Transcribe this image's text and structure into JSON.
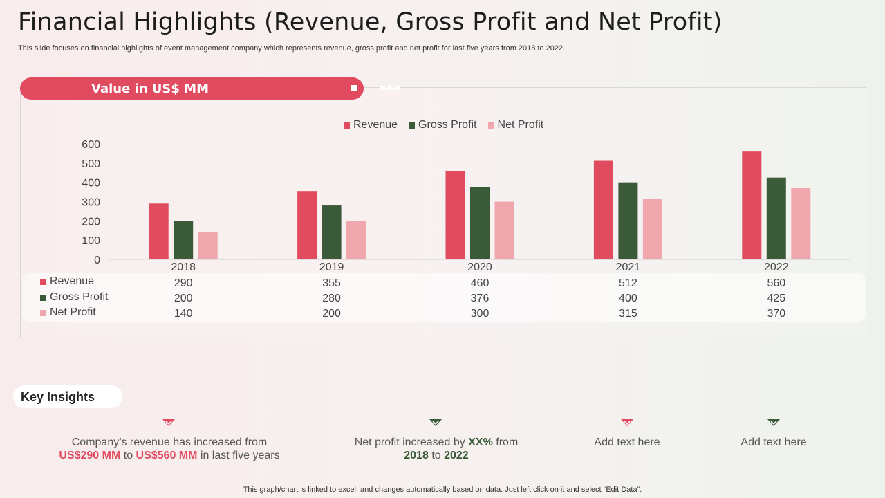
{
  "header": {
    "title": "Financial Highlights (Revenue, Gross Profit and Net Profit)",
    "subtitle": "This slide focuses on financial highlights of event management company which represents revenue, gross profit and net profit for last five years from 2018 to 2022."
  },
  "panel": {
    "label": "Value in US$ MM"
  },
  "colors": {
    "revenue": "#e14b60",
    "gross_profit": "#3b5a3a",
    "net_profit": "#f0a6ad",
    "accent": "#e14b60"
  },
  "chart_data": {
    "type": "bar",
    "title": "Value in US$ MM",
    "categories": [
      "2018",
      "2019",
      "2020",
      "2021",
      "2022"
    ],
    "series": [
      {
        "name": "Revenue",
        "values": [
          290,
          355,
          460,
          512,
          560
        ]
      },
      {
        "name": "Gross Profit",
        "values": [
          200,
          280,
          376,
          400,
          425
        ]
      },
      {
        "name": "Net Profit",
        "values": [
          140,
          200,
          300,
          315,
          370
        ]
      }
    ],
    "ylim": [
      0,
      600
    ],
    "yticks": [
      "0",
      "100",
      "200",
      "300",
      "400",
      "500",
      "600"
    ],
    "xlabel": "",
    "ylabel": "",
    "legend_position": "top-center",
    "grid": false,
    "data_table": true
  },
  "insights": {
    "heading": "Key Insights",
    "item1": {
      "pre": "Company’s revenue  has increased from",
      "v1": "US$290 MM",
      "mid": " to ",
      "v2": "US$560 MM",
      "post": " in last five years"
    },
    "item2": {
      "pre": "Net profit increased by ",
      "v1": "XX%",
      "mid": " from",
      "v2": "2018",
      "mid2": " to ",
      "v3": "2022"
    },
    "item3": "Add text here",
    "item4": "Add text here"
  },
  "footer": "This graph/chart is linked to excel,  and changes automatically based on data. Just left click on it and select “Edit Data”."
}
